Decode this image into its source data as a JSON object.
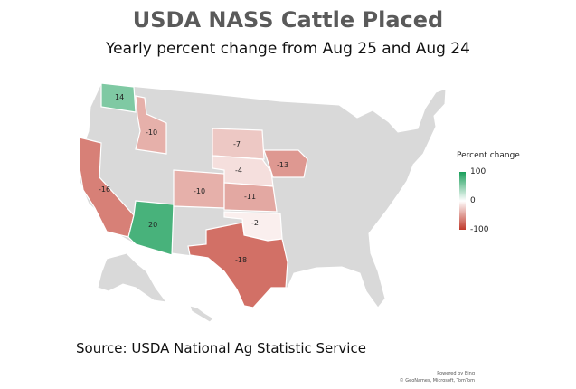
{
  "title": "USDA NASS Cattle Placed",
  "subtitle": "Yearly percent change from Aug 25 and Aug 24",
  "legend": {
    "title": "Percent change",
    "max": "100",
    "mid": "0",
    "min": "-100"
  },
  "source": "Source: USDA National Ag Statistic Service",
  "credit": {
    "line1": "Powered by Bing",
    "line2": "© GeoNames, Microsoft, TomTom"
  },
  "colors": {
    "positive": "#1a9f5a",
    "neutral": "#ffffff",
    "negative": "#c0392b",
    "no_data": "#d9d9d9"
  },
  "chart_data": {
    "type": "choropleth",
    "region": "United States",
    "values": [
      {
        "state": "Washington",
        "value": 14
      },
      {
        "state": "Idaho",
        "value": -10
      },
      {
        "state": "California",
        "value": -16
      },
      {
        "state": "Arizona",
        "value": 20
      },
      {
        "state": "Colorado",
        "value": -10
      },
      {
        "state": "South Dakota",
        "value": -7
      },
      {
        "state": "Nebraska",
        "value": -4
      },
      {
        "state": "Kansas",
        "value": -11
      },
      {
        "state": "Oklahoma",
        "value": -2
      },
      {
        "state": "Texas",
        "value": -18
      },
      {
        "state": "Iowa",
        "value": -13
      }
    ],
    "color_scale": {
      "min": -100,
      "mid": 0,
      "max": 100
    }
  }
}
